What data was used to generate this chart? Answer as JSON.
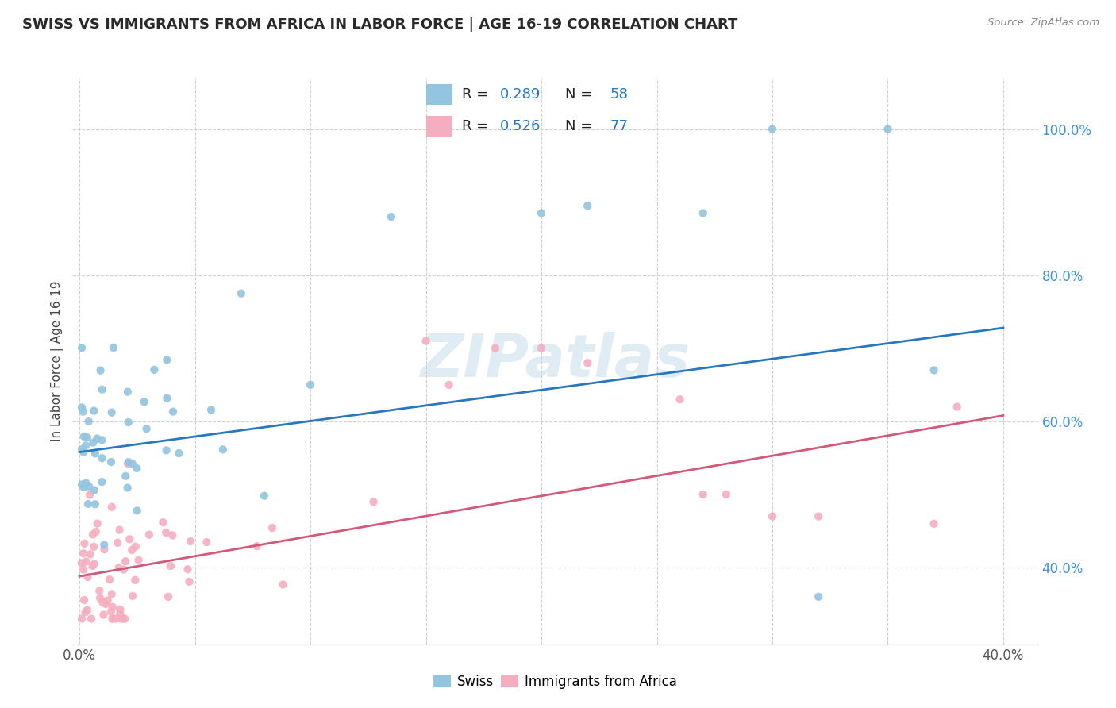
{
  "title": "SWISS VS IMMIGRANTS FROM AFRICA IN LABOR FORCE | AGE 16-19 CORRELATION CHART",
  "source": "Source: ZipAtlas.com",
  "ylabel": "In Labor Force | Age 16-19",
  "xlim": [
    -0.003,
    0.415
  ],
  "ylim": [
    0.295,
    1.07
  ],
  "xticks": [
    0.0,
    0.05,
    0.1,
    0.15,
    0.2,
    0.25,
    0.3,
    0.35,
    0.4
  ],
  "yticks": [
    0.4,
    0.6,
    0.8,
    1.0
  ],
  "yticklabels": [
    "40.0%",
    "60.0%",
    "80.0%",
    "100.0%"
  ],
  "swiss_color": "#93c4e0",
  "africa_color": "#f5aec0",
  "swiss_line_color": "#2878c0",
  "africa_line_color": "#d45878",
  "swiss_R": 0.289,
  "swiss_N": 58,
  "africa_R": 0.526,
  "africa_N": 77,
  "swiss_line_x": [
    0.0,
    0.4
  ],
  "swiss_line_y": [
    0.558,
    0.728
  ],
  "africa_line_x": [
    0.0,
    0.4
  ],
  "africa_line_y": [
    0.388,
    0.608
  ],
  "watermark": "ZIPatlas",
  "bg_color": "#ffffff",
  "grid_color": "#d0d0d0",
  "ytick_color": "#4090d0",
  "label_color": "#444444"
}
